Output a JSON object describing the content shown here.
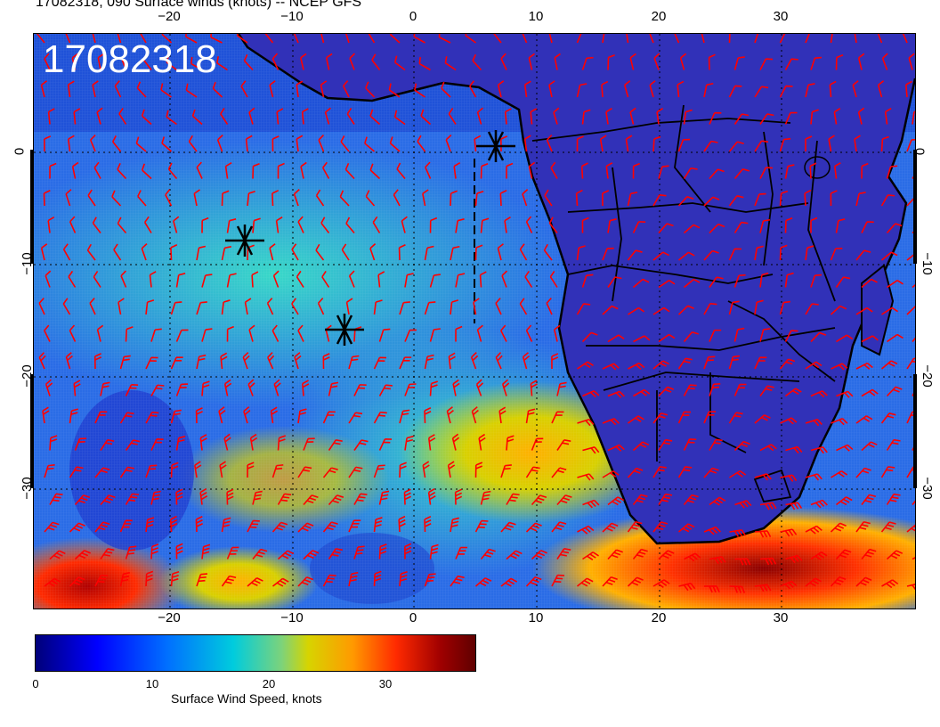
{
  "title": "17082318, 090 Surface winds (knots) -- NCEP GFS",
  "stamp": "17082318",
  "map": {
    "longitude_ticks": [
      "−20",
      "−10",
      "0",
      "10",
      "20",
      "30"
    ],
    "latitude_ticks": [
      "0",
      "−10",
      "−20",
      "−30"
    ],
    "land_color": "#2d2db8",
    "barb_color": "#ff0000",
    "coast_color": "#000000"
  },
  "colorbar": {
    "ticks": [
      "0",
      "10",
      "20",
      "30"
    ],
    "label": "Surface Wind Speed, knots"
  }
}
